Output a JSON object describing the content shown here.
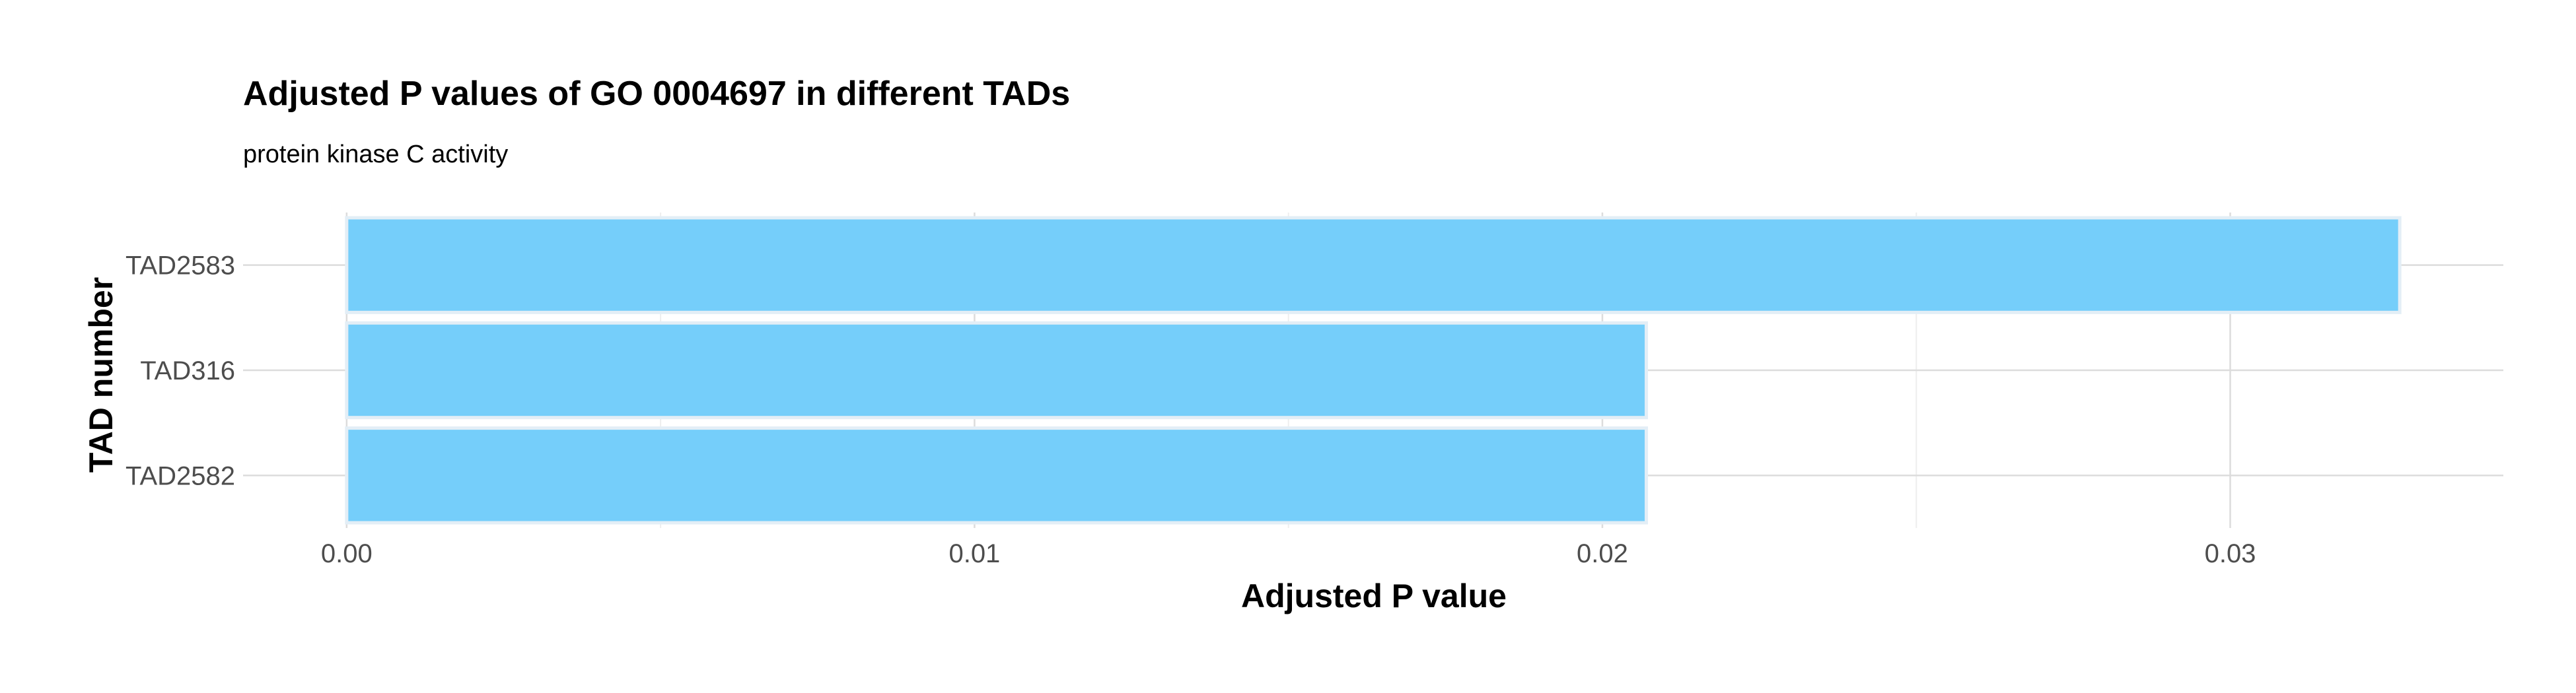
{
  "chart_data": {
    "type": "bar",
    "orientation": "horizontal",
    "title": "Adjusted P values of GO 0004697 in different TADs",
    "subtitle": "protein kinase C activity",
    "xlabel": "Adjusted P value",
    "ylabel": "TAD number",
    "categories": [
      "TAD2583",
      "TAD316",
      "TAD2582"
    ],
    "values": [
      0.0327,
      0.0207,
      0.0207
    ],
    "xlim": [
      -0.00165,
      0.03435
    ],
    "x_ticks": [
      0.0,
      0.01,
      0.02,
      0.03
    ],
    "x_tick_labels": [
      "0.00",
      "0.01",
      "0.02",
      "0.03"
    ],
    "grid": true,
    "legend": "none",
    "colors": {
      "bar_fill": "#75CEFA",
      "bar_stroke": "#E3EEF6",
      "grid_major": "#DCDCDC",
      "grid_minor": "#EEEEEE",
      "text": "#000000",
      "tick_text": "#4D4D4D"
    }
  }
}
